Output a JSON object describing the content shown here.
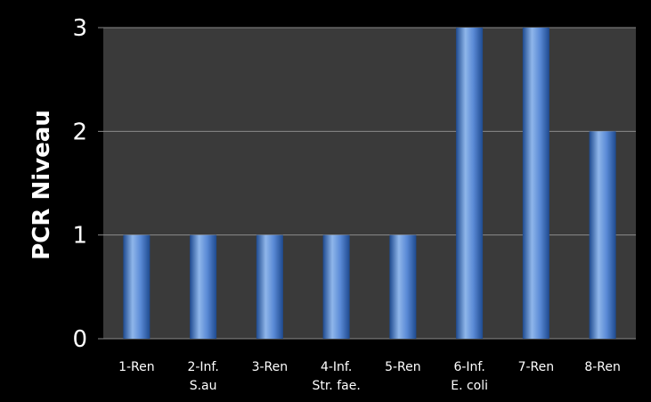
{
  "chart_data": {
    "type": "bar",
    "categories": [
      [
        "1-Ren"
      ],
      [
        "2-Inf.",
        "S.au"
      ],
      [
        "3-Ren"
      ],
      [
        "4-Inf.",
        "Str. fae."
      ],
      [
        "5-Ren"
      ],
      [
        "6-Inf.",
        "E. coli"
      ],
      [
        "7-Ren"
      ],
      [
        "8-Ren"
      ]
    ],
    "values": [
      1,
      1,
      1,
      1,
      1,
      3,
      3,
      2
    ],
    "ylabel": "PCR Niveau",
    "ylim": [
      0,
      3
    ],
    "yticks": [
      "0",
      "1",
      "2",
      "3"
    ],
    "grid": true,
    "colors": {
      "background": "#000000",
      "plot_area": "#3a3a3a",
      "bar_light": "#8fb6ea",
      "bar_mid": "#3f74c6",
      "bar_dark": "#1e4a8f",
      "gridline": "#8a8a8a"
    }
  }
}
